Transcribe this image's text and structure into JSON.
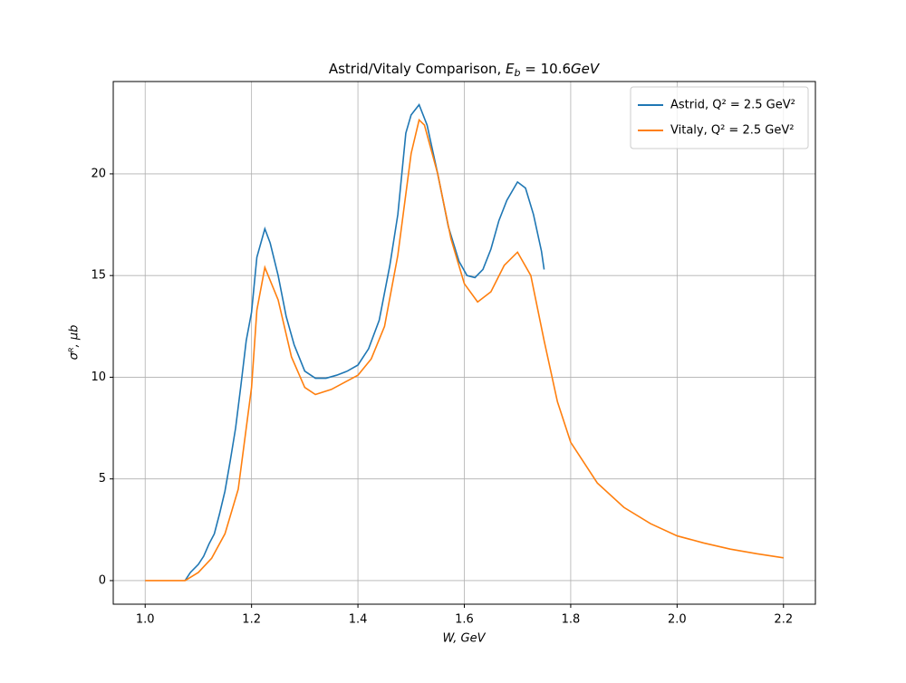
{
  "chart_data": {
    "type": "line",
    "title": [
      "Astrid/Vitaly Comparison, ",
      "E",
      "b",
      " = 10.6",
      "GeV"
    ],
    "xlabel": "W, GeV",
    "ylabel": "σᴿ, μb",
    "xlim": [
      0.94,
      2.26
    ],
    "ylim": [
      -1.16,
      24.54
    ],
    "xticks": [
      {
        "value": 1.0,
        "label": "1.0"
      },
      {
        "value": 1.2,
        "label": "1.2"
      },
      {
        "value": 1.4,
        "label": "1.4"
      },
      {
        "value": 1.6,
        "label": "1.6"
      },
      {
        "value": 1.8,
        "label": "1.8"
      },
      {
        "value": 2.0,
        "label": "2.0"
      },
      {
        "value": 2.2,
        "label": "2.2"
      }
    ],
    "yticks": [
      0,
      5,
      10,
      15,
      20
    ],
    "grid": true,
    "legend": "upper right",
    "series": [
      {
        "name": "Astrid, Q² = 2.5 GeV²",
        "color": "#1f77b4",
        "x": [
          1.075,
          1.085,
          1.1,
          1.11,
          1.12,
          1.13,
          1.14,
          1.15,
          1.16,
          1.17,
          1.18,
          1.19,
          1.2,
          1.21,
          1.225,
          1.235,
          1.25,
          1.265,
          1.28,
          1.3,
          1.32,
          1.34,
          1.36,
          1.38,
          1.4,
          1.42,
          1.44,
          1.46,
          1.475,
          1.49,
          1.5,
          1.515,
          1.53,
          1.55,
          1.57,
          1.59,
          1.605,
          1.62,
          1.635,
          1.65,
          1.665,
          1.68,
          1.7,
          1.715,
          1.73,
          1.745,
          1.75
        ],
        "values": [
          0,
          0.4,
          0.8,
          1.2,
          1.8,
          2.3,
          3.3,
          4.4,
          5.9,
          7.5,
          9.6,
          11.8,
          13.2,
          15.9,
          17.3,
          16.6,
          15.0,
          13.0,
          11.6,
          10.3,
          9.95,
          9.95,
          10.1,
          10.3,
          10.6,
          11.4,
          12.8,
          15.5,
          18.0,
          22.0,
          22.9,
          23.4,
          22.4,
          20.0,
          17.4,
          15.7,
          15.0,
          14.9,
          15.3,
          16.3,
          17.7,
          18.7,
          19.6,
          19.3,
          18.0,
          16.2,
          15.3
        ]
      },
      {
        "name": "Vitaly, Q² = 2.5 GeV²",
        "color": "#ff7f0e",
        "x": [
          1.0,
          1.025,
          1.05,
          1.075,
          1.1,
          1.125,
          1.15,
          1.175,
          1.2,
          1.21,
          1.225,
          1.25,
          1.275,
          1.3,
          1.32,
          1.35,
          1.375,
          1.4,
          1.425,
          1.45,
          1.475,
          1.5,
          1.515,
          1.525,
          1.55,
          1.575,
          1.6,
          1.625,
          1.65,
          1.675,
          1.7,
          1.725,
          1.75,
          1.775,
          1.8,
          1.85,
          1.9,
          1.95,
          2.0,
          2.05,
          2.1,
          2.15,
          2.2
        ],
        "values": [
          0,
          0,
          0,
          0,
          0.4,
          1.1,
          2.3,
          4.5,
          9.5,
          13.3,
          15.4,
          13.8,
          11.0,
          9.5,
          9.15,
          9.4,
          9.75,
          10.1,
          10.9,
          12.5,
          16.0,
          21.0,
          22.65,
          22.4,
          20.0,
          16.8,
          14.6,
          13.7,
          14.2,
          15.5,
          16.15,
          15.0,
          11.8,
          8.8,
          6.8,
          4.8,
          3.6,
          2.8,
          2.2,
          1.85,
          1.55,
          1.32,
          1.12
        ]
      }
    ]
  }
}
